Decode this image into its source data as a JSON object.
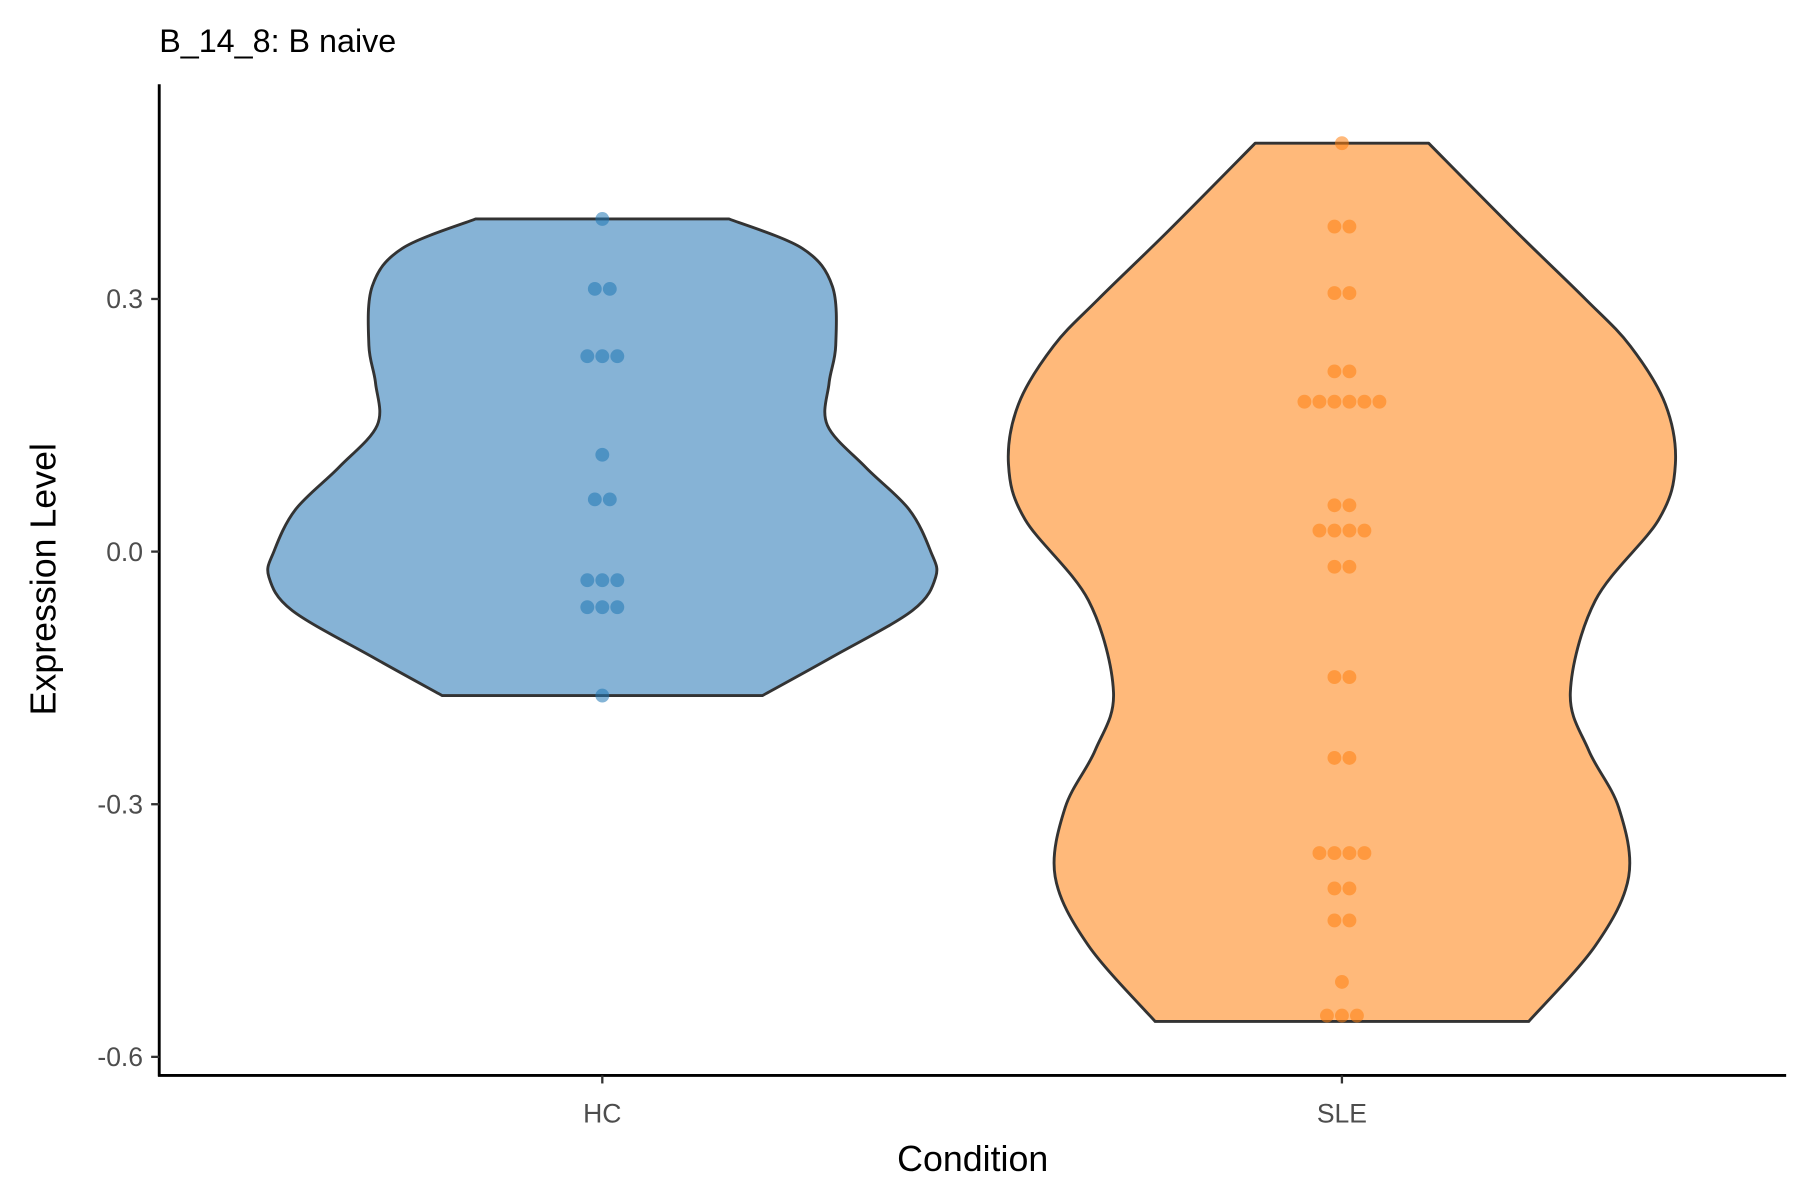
{
  "chart_data": {
    "type": "violin",
    "title": "B_14_8: B naive",
    "xlabel": "Condition",
    "ylabel": "Expression Level",
    "ylim": [
      -0.622,
      0.555
    ],
    "yticks": [
      {
        "value": 0.3,
        "label": "0.3"
      },
      {
        "value": 0.0,
        "label": "0.0"
      },
      {
        "value": -0.3,
        "label": "-0.3"
      },
      {
        "value": -0.6,
        "label": "-0.6"
      }
    ],
    "categories": [
      "HC",
      "SLE"
    ],
    "grid": false,
    "legend": "none",
    "series": [
      {
        "name": "HC",
        "fill": "#86b3d6",
        "point_color": "#1f77b4",
        "density": [
          [
            0.395,
            0.38
          ],
          [
            0.36,
            0.6
          ],
          [
            0.315,
            0.69
          ],
          [
            0.245,
            0.7
          ],
          [
            0.2,
            0.68
          ],
          [
            0.15,
            0.675
          ],
          [
            0.1,
            0.79
          ],
          [
            0.05,
            0.92
          ],
          [
            0.0,
            0.985
          ],
          [
            -0.03,
            1.0
          ],
          [
            -0.07,
            0.93
          ],
          [
            -0.125,
            0.69
          ],
          [
            -0.171,
            0.48
          ]
        ],
        "points": [
          {
            "y": 0.395,
            "n": 1
          },
          {
            "y": 0.312,
            "n": 2
          },
          {
            "y": 0.232,
            "n": 3
          },
          {
            "y": 0.115,
            "n": 1
          },
          {
            "y": 0.062,
            "n": 2
          },
          {
            "y": -0.034,
            "n": 3
          },
          {
            "y": -0.066,
            "n": 3
          },
          {
            "y": -0.171,
            "n": 1
          }
        ]
      },
      {
        "name": "SLE",
        "fill": "#ffb97a",
        "point_color": "#ff7f0e",
        "density": [
          [
            0.485,
            0.26
          ],
          [
            0.381,
            0.52
          ],
          [
            0.3,
            0.73
          ],
          [
            0.244,
            0.865
          ],
          [
            0.175,
            0.97
          ],
          [
            0.104,
            1.0
          ],
          [
            0.038,
            0.95
          ],
          [
            -0.058,
            0.76
          ],
          [
            -0.167,
            0.685
          ],
          [
            -0.236,
            0.74
          ],
          [
            -0.304,
            0.83
          ],
          [
            -0.386,
            0.86
          ],
          [
            -0.468,
            0.76
          ],
          [
            -0.558,
            0.56
          ]
        ],
        "points": [
          {
            "y": 0.485,
            "n": 1
          },
          {
            "y": 0.386,
            "n": 2
          },
          {
            "y": 0.307,
            "n": 2
          },
          {
            "y": 0.214,
            "n": 2
          },
          {
            "y": 0.178,
            "n": 6
          },
          {
            "y": 0.055,
            "n": 2
          },
          {
            "y": 0.025,
            "n": 4
          },
          {
            "y": -0.018,
            "n": 2
          },
          {
            "y": -0.149,
            "n": 2
          },
          {
            "y": -0.245,
            "n": 2
          },
          {
            "y": -0.358,
            "n": 4
          },
          {
            "y": -0.4,
            "n": 2
          },
          {
            "y": -0.438,
            "n": 2
          },
          {
            "y": -0.511,
            "n": 1
          },
          {
            "y": -0.551,
            "n": 3
          }
        ]
      }
    ]
  }
}
